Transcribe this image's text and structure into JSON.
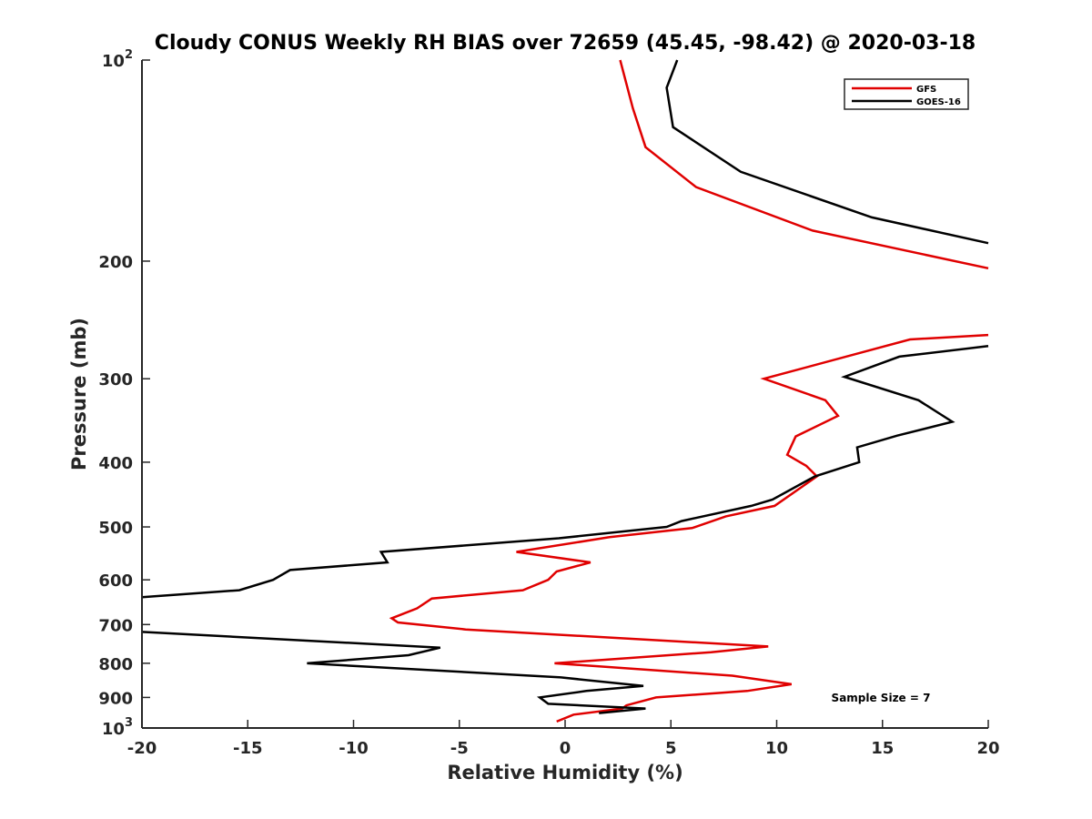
{
  "chart_data": {
    "type": "line",
    "title": "Cloudy CONUS Weekly RH BIAS over 72659 (45.45, -98.42) @ 2020-03-18",
    "xlabel": "Relative Humidity (%)",
    "ylabel": "Pressure (mb)",
    "xlim": [
      -20,
      20
    ],
    "ylim": [
      1000,
      100
    ],
    "y_scale": "log",
    "y_reversed": true,
    "grid": false,
    "legend_position": "top-right",
    "x_ticks": [
      "-20",
      "-15",
      "-10",
      "-5",
      "0",
      "5",
      "10",
      "15",
      "20"
    ],
    "y_ticks": [
      {
        "value": 100,
        "base": "10",
        "exp": "2"
      },
      {
        "value": 200,
        "label": "200"
      },
      {
        "value": 300,
        "label": "300"
      },
      {
        "value": 400,
        "label": "400"
      },
      {
        "value": 500,
        "label": "500"
      },
      {
        "value": 600,
        "label": "600"
      },
      {
        "value": 700,
        "label": "700"
      },
      {
        "value": 800,
        "label": "800"
      },
      {
        "value": 900,
        "label": "900"
      },
      {
        "value": 1000,
        "base": "10",
        "exp": "3"
      }
    ],
    "series": [
      {
        "name": "GFS",
        "color": "#e00000",
        "segments": [
          [
            [
              2.6,
              100
            ],
            [
              3.2,
              118
            ],
            [
              3.8,
              135
            ],
            [
              6.2,
              155
            ],
            [
              11.7,
              180
            ],
            [
              20.0,
              205
            ]
          ],
          [
            [
              20.0,
              258
            ],
            [
              16.3,
              262
            ],
            [
              9.4,
              300
            ],
            [
              12.3,
              323
            ],
            [
              12.9,
              341
            ],
            [
              10.9,
              366
            ],
            [
              10.5,
              390
            ],
            [
              11.4,
              405
            ],
            [
              11.9,
              420
            ],
            [
              9.9,
              465
            ],
            [
              7.6,
              482
            ],
            [
              6.0,
              502
            ],
            [
              2.1,
              518
            ],
            [
              -2.3,
              545
            ],
            [
              1.2,
              565
            ],
            [
              -0.4,
              583
            ],
            [
              -0.8,
              600
            ],
            [
              -2.0,
              622
            ],
            [
              -6.3,
              640
            ],
            [
              -7.0,
              662
            ],
            [
              -8.2,
              685
            ],
            [
              -7.9,
              695
            ],
            [
              -4.7,
              712
            ],
            [
              9.6,
              755
            ],
            [
              6.9,
              770
            ],
            [
              -0.5,
              800
            ],
            [
              7.9,
              835
            ],
            [
              10.7,
              860
            ],
            [
              8.6,
              880
            ],
            [
              4.3,
              900
            ],
            [
              2.9,
              925
            ],
            [
              2.7,
              935
            ],
            [
              0.4,
              955
            ],
            [
              -0.4,
              978
            ]
          ]
        ]
      },
      {
        "name": "GOES-16",
        "color": "#000000",
        "segments": [
          [
            [
              5.3,
              100
            ],
            [
              4.8,
              110
            ],
            [
              5.1,
              126
            ],
            [
              8.3,
              147
            ],
            [
              14.5,
              172
            ],
            [
              20.0,
              188
            ]
          ],
          [
            [
              20.0,
              268
            ],
            [
              15.8,
              278
            ],
            [
              13.2,
              298
            ],
            [
              16.7,
              323
            ],
            [
              18.3,
              348
            ],
            [
              15.7,
              365
            ],
            [
              13.8,
              380
            ],
            [
              13.9,
              400
            ],
            [
              11.8,
              420
            ],
            [
              9.8,
              455
            ],
            [
              8.8,
              465
            ],
            [
              5.5,
              490
            ],
            [
              4.8,
              500
            ],
            [
              -0.3,
              520
            ],
            [
              -8.7,
              545
            ],
            [
              -8.4,
              565
            ],
            [
              -13.0,
              580
            ],
            [
              -13.8,
              600
            ],
            [
              -15.4,
              622
            ],
            [
              -20.0,
              637
            ]
          ],
          [
            [
              -20.0,
              718
            ],
            [
              -5.9,
              758
            ],
            [
              -7.4,
              778
            ],
            [
              -12.2,
              800
            ],
            [
              -0.2,
              840
            ],
            [
              3.7,
              865
            ],
            [
              1.0,
              880
            ],
            [
              -1.2,
              900
            ],
            [
              -0.8,
              920
            ],
            [
              3.8,
              935
            ],
            [
              1.6,
              950
            ]
          ]
        ]
      }
    ],
    "annotations": [
      "Sample Size = 7"
    ]
  }
}
